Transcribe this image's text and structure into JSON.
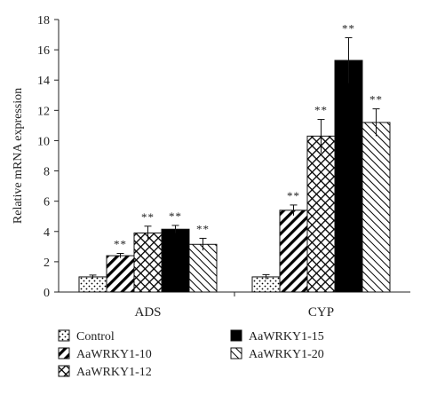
{
  "chart_data": {
    "type": "bar",
    "categories": [
      "ADS",
      "CYP"
    ],
    "ylabel": "Relative mRNA expression",
    "xlabel": "",
    "ylim": [
      0,
      18
    ],
    "yticks": [
      0,
      2,
      4,
      6,
      8,
      10,
      12,
      14,
      16,
      18
    ],
    "grid": false,
    "legend_position": "bottom",
    "series": [
      {
        "name": "Control",
        "pattern": "dots",
        "values": [
          1.0,
          1.0
        ],
        "errors": [
          0.12,
          0.15
        ],
        "sig": [
          "",
          ""
        ]
      },
      {
        "name": "AaWRKY1-10",
        "pattern": "diag-thick",
        "values": [
          2.4,
          5.4
        ],
        "errors": [
          0.15,
          0.35
        ],
        "sig": [
          "**",
          "**"
        ]
      },
      {
        "name": "AaWRKY1-12",
        "pattern": "crosshatch",
        "values": [
          3.9,
          10.3
        ],
        "errors": [
          0.45,
          1.1
        ],
        "sig": [
          "**",
          "**"
        ]
      },
      {
        "name": "AaWRKY1-15",
        "pattern": "solid",
        "values": [
          4.15,
          15.3
        ],
        "errors": [
          0.25,
          1.5
        ],
        "sig": [
          "**",
          "**"
        ]
      },
      {
        "name": "AaWRKY1-20",
        "pattern": "diag-thin",
        "values": [
          3.15,
          11.2
        ],
        "errors": [
          0.4,
          0.9
        ],
        "sig": [
          "**",
          "**"
        ]
      }
    ]
  }
}
